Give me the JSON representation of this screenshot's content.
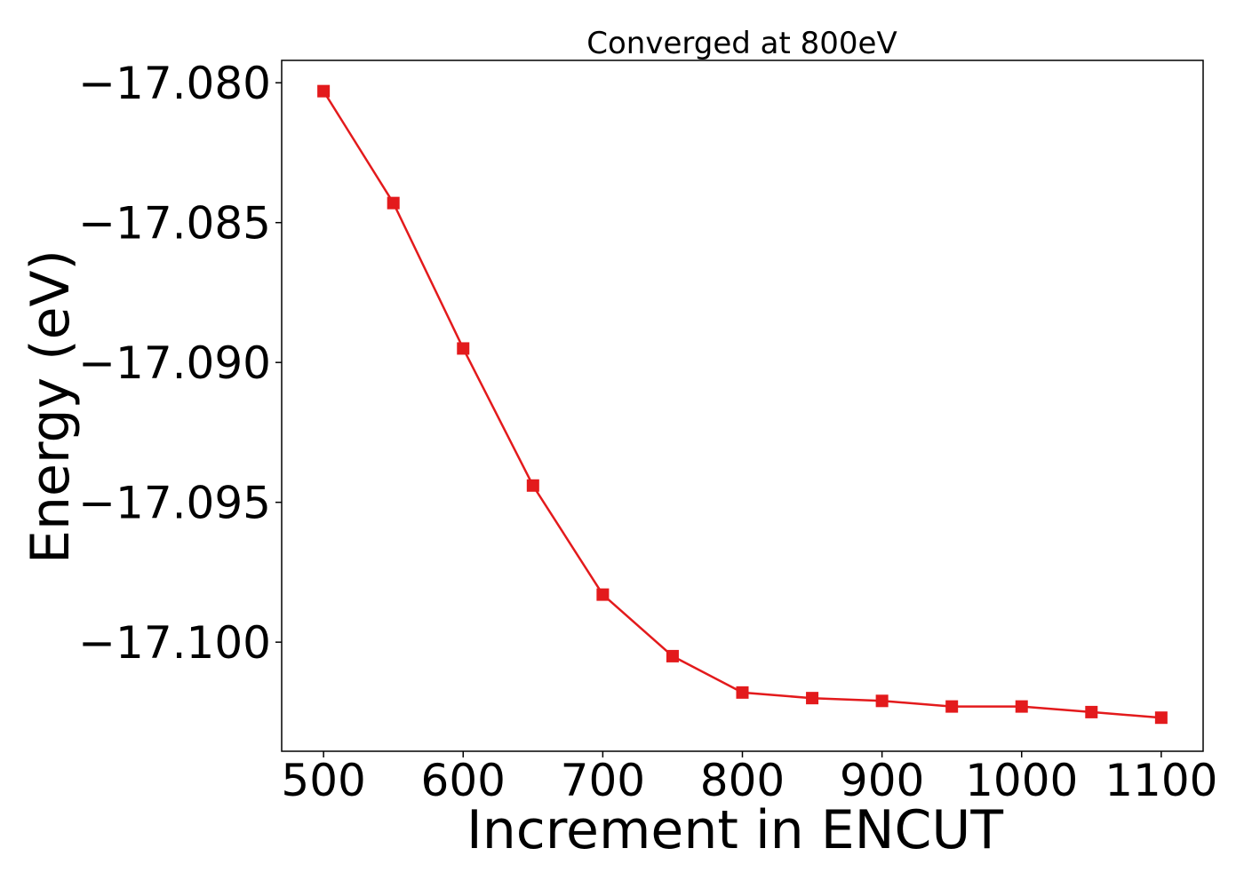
{
  "chart_data": {
    "type": "line",
    "title": "Converged at 800eV",
    "xlabel": "Increment in ENCUT",
    "ylabel": "Energy (eV)",
    "x_ticks": [
      "500",
      "600",
      "700",
      "800",
      "900",
      "1000",
      "1100"
    ],
    "x_tick_values": [
      500,
      600,
      700,
      800,
      900,
      1000,
      1100
    ],
    "y_ticks": [
      "−17.080",
      "−17.085",
      "−17.090",
      "−17.095",
      "−17.100"
    ],
    "y_tick_values": [
      -17.08,
      -17.085,
      -17.09,
      -17.095,
      -17.1
    ],
    "xlim": [
      470,
      1130
    ],
    "ylim": [
      -17.1039,
      -17.0792
    ],
    "grid": false,
    "series": [
      {
        "color": "#e31a1c",
        "marker": "square",
        "x": [
          500,
          550,
          600,
          650,
          700,
          750,
          800,
          850,
          900,
          950,
          1000,
          1050,
          1100
        ],
        "y": [
          -17.0803,
          -17.0843,
          -17.0895,
          -17.0944,
          -17.0983,
          -17.1005,
          -17.1018,
          -17.102,
          -17.1021,
          -17.1023,
          -17.1023,
          -17.1025,
          -17.1027
        ]
      }
    ]
  }
}
